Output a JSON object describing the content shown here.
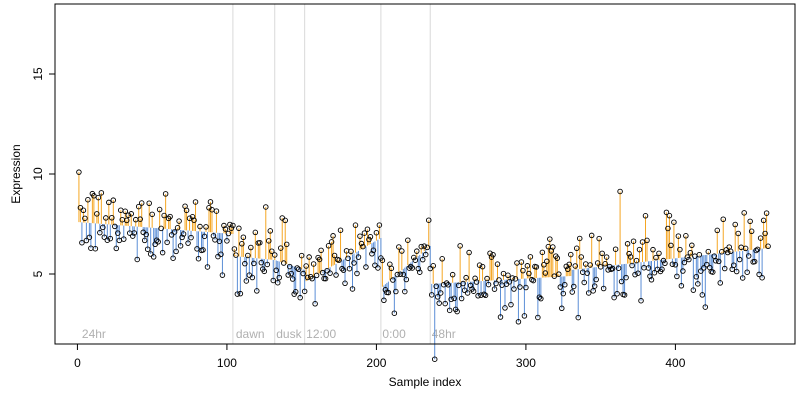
{
  "chart_data": {
    "type": "scatter",
    "xlabel": "Sample index",
    "ylabel": "Expression",
    "xlim": [
      -15,
      480
    ],
    "ylim": [
      1.5,
      18.5
    ],
    "x_ticks": [
      0,
      100,
      200,
      300,
      400
    ],
    "y_ticks": [
      5,
      10,
      15
    ],
    "colors": {
      "above_fit": "#f5a623",
      "below_fit": "#5b8ed6",
      "point_edge": "#000000",
      "boundary": "#d9d9d9",
      "period_label": "#b0b0b0"
    },
    "period_boundaries": [
      104,
      132,
      152,
      203,
      236
    ],
    "period_labels": [
      {
        "text": "24hr",
        "x": 3
      },
      {
        "text": "dawn",
        "x": 106
      },
      {
        "text": "dusk",
        "x": 133
      },
      {
        "text": "12:00",
        "x": 153
      },
      {
        "text": "0:00",
        "x": 204
      },
      {
        "text": "48hr",
        "x": 237
      }
    ],
    "fitted_segments": [
      {
        "x0": 0,
        "x1": 104,
        "y0": 7.6,
        "y1": 7.0
      },
      {
        "x0": 104,
        "x1": 132,
        "y0": 5.9,
        "y1": 5.7
      },
      {
        "x0": 132,
        "x1": 152,
        "y0": 5.7,
        "y1": 5.2
      },
      {
        "x0": 152,
        "x1": 203,
        "y0": 4.6,
        "y1": 6.8
      },
      {
        "x0": 203,
        "x1": 236,
        "y0": 4.3,
        "y1": 6.4
      },
      {
        "x0": 236,
        "x1": 330,
        "y0": 4.5,
        "y1": 4.9
      },
      {
        "x0": 330,
        "x1": 462,
        "y0": 5.2,
        "y1": 6.3
      }
    ],
    "point_count": 462,
    "point_seed": 12345,
    "point_sigma": 0.9
  }
}
